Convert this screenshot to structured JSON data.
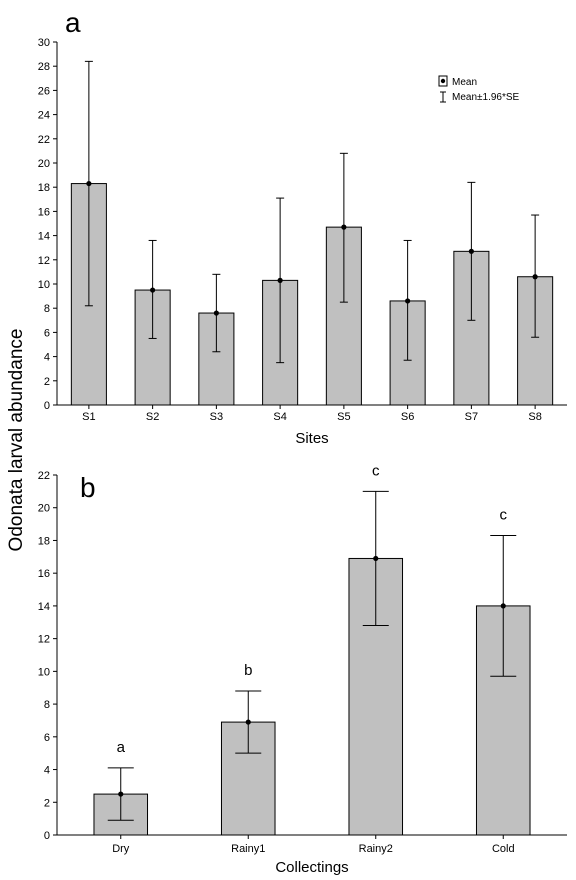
{
  "ylabel": "Odonata larval abundance",
  "legend": {
    "mean_label": "Mean",
    "se_label": "Mean±1.96*SE"
  },
  "colors": {
    "bar_fill": "#c0c0c0",
    "bar_stroke": "#000000",
    "error_bar": "#000000"
  },
  "chart_data": [
    {
      "type": "bar",
      "panel_label": "a",
      "xlabel": "Sites",
      "categories": [
        "S1",
        "S2",
        "S3",
        "S4",
        "S5",
        "S6",
        "S7",
        "S8"
      ],
      "series": [
        {
          "values": [
            18.3,
            9.5,
            7.6,
            10.3,
            14.7,
            8.6,
            12.7,
            10.6
          ],
          "lower": [
            8.2,
            5.5,
            4.4,
            3.5,
            8.5,
            3.7,
            7.0,
            5.6
          ],
          "upper": [
            28.4,
            13.6,
            10.8,
            17.1,
            20.8,
            13.6,
            18.4,
            15.7
          ]
        }
      ],
      "ylim": [
        0,
        30
      ],
      "yticks": [
        0,
        2,
        4,
        6,
        8,
        10,
        12,
        14,
        16,
        18,
        20,
        22,
        24,
        26,
        28,
        30
      ],
      "legend_position": "top-right",
      "grid": false
    },
    {
      "type": "bar",
      "panel_label": "b",
      "xlabel": "Collectings",
      "categories": [
        "Dry",
        "Rainy1",
        "Rainy2",
        "Cold"
      ],
      "series": [
        {
          "values": [
            2.5,
            6.9,
            16.9,
            14.0
          ],
          "lower": [
            0.9,
            5.0,
            12.8,
            9.7
          ],
          "upper": [
            4.1,
            8.8,
            21.0,
            18.3
          ]
        }
      ],
      "annotations": [
        "a",
        "b",
        "c",
        "c"
      ],
      "ylim": [
        0,
        22
      ],
      "yticks": [
        0,
        2,
        4,
        6,
        8,
        10,
        12,
        14,
        16,
        18,
        20,
        22
      ],
      "grid": false
    }
  ]
}
